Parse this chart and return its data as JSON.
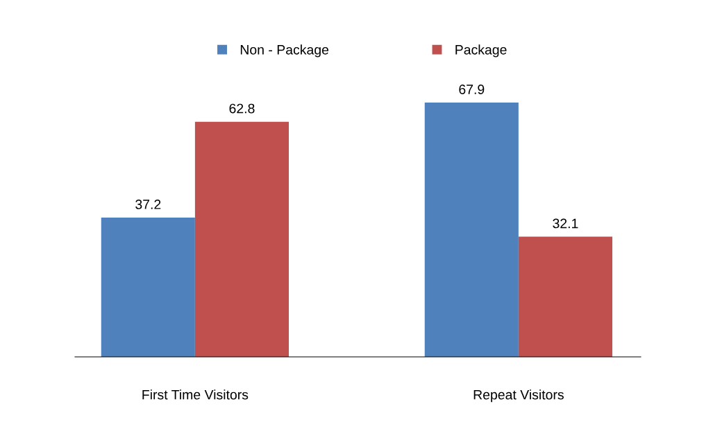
{
  "chart_data": {
    "type": "bar",
    "categories": [
      "First Time Visitors",
      "Repeat Visitors"
    ],
    "series": [
      {
        "name": "Non - Package",
        "color": "#4f81bd",
        "values": [
          37.2,
          67.9
        ]
      },
      {
        "name": "Package",
        "color": "#c0504d",
        "values": [
          62.8,
          32.1
        ]
      }
    ],
    "data_labels": true,
    "legend": "top",
    "grid": false
  }
}
